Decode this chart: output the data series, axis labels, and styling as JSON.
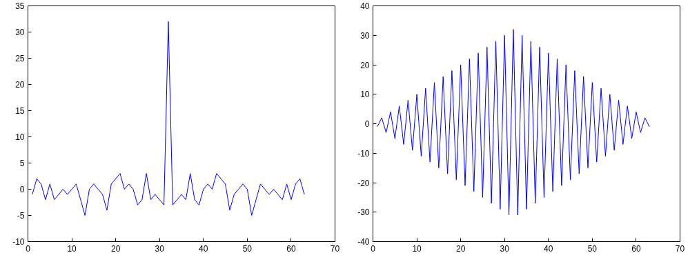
{
  "chart_data": [
    {
      "type": "line",
      "x": [
        1,
        2,
        3,
        4,
        5,
        6,
        7,
        8,
        9,
        10,
        11,
        12,
        13,
        14,
        15,
        16,
        17,
        18,
        19,
        20,
        21,
        22,
        23,
        24,
        25,
        26,
        27,
        28,
        29,
        30,
        31,
        32,
        33,
        34,
        35,
        36,
        37,
        38,
        39,
        40,
        41,
        42,
        43,
        44,
        45,
        46,
        47,
        48,
        49,
        50,
        51,
        52,
        53,
        54,
        55,
        56,
        57,
        58,
        59,
        60,
        61,
        62,
        63
      ],
      "series": [
        {
          "color": "#0000ff",
          "values": [
            -1,
            2,
            1,
            -2,
            1,
            -2,
            -1,
            0,
            -1,
            0,
            1,
            -2,
            -5,
            0,
            1,
            0,
            -1,
            -4,
            1,
            2,
            3,
            0,
            1,
            0,
            -3,
            -2,
            3,
            -2,
            -1,
            -2,
            -3,
            32,
            -3,
            -2,
            -1,
            -2,
            3,
            -2,
            -3,
            0,
            1,
            0,
            3,
            2,
            1,
            -4,
            -1,
            0,
            1,
            0,
            -5,
            -2,
            1,
            0,
            -1,
            0,
            -1,
            -2,
            1,
            -2,
            1,
            2,
            -1
          ]
        }
      ],
      "xlim": [
        0,
        70
      ],
      "xticks": [
        0,
        10,
        20,
        30,
        40,
        50,
        60,
        70
      ],
      "ylim": [
        -10,
        35
      ],
      "yticks": [
        -10,
        -5,
        0,
        5,
        10,
        15,
        20,
        25,
        30,
        35
      ],
      "grid": false
    },
    {
      "type": "line",
      "x": [
        1,
        2,
        3,
        4,
        5,
        6,
        7,
        8,
        9,
        10,
        11,
        12,
        13,
        14,
        15,
        16,
        17,
        18,
        19,
        20,
        21,
        22,
        23,
        24,
        25,
        26,
        27,
        28,
        29,
        30,
        31,
        32,
        33,
        34,
        35,
        36,
        37,
        38,
        39,
        40,
        41,
        42,
        43,
        44,
        45,
        46,
        47,
        48,
        49,
        50,
        51,
        52,
        53,
        54,
        55,
        56,
        57,
        58,
        59,
        60,
        61,
        62,
        63
      ],
      "series": [
        {
          "color": "#0000ff",
          "values": [
            -1,
            2,
            -3,
            4,
            -5,
            6,
            -7,
            8,
            -9,
            10,
            -11,
            12,
            -13,
            14,
            -15,
            16,
            -17,
            18,
            -19,
            20,
            -21,
            22,
            -23,
            24,
            -25,
            26,
            -27,
            28,
            -29,
            30,
            -31,
            32,
            -31,
            30,
            -29,
            28,
            -27,
            26,
            -25,
            24,
            -23,
            22,
            -21,
            20,
            -19,
            18,
            -17,
            16,
            -15,
            14,
            -13,
            12,
            -11,
            10,
            -9,
            8,
            -7,
            6,
            -5,
            4,
            -3,
            2,
            -1
          ]
        }
      ],
      "xlim": [
        0,
        70
      ],
      "xticks": [
        0,
        10,
        20,
        30,
        40,
        50,
        60,
        70
      ],
      "ylim": [
        -40,
        40
      ],
      "yticks": [
        -40,
        -30,
        -20,
        -10,
        0,
        10,
        20,
        30,
        40
      ],
      "grid": false
    }
  ]
}
